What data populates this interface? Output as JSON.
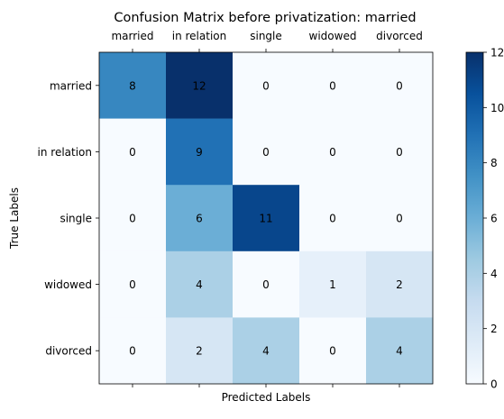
{
  "chart_data": {
    "type": "heatmap",
    "title": "Confusion Matrix before privatization: married",
    "xlabel": "Predicted Labels",
    "ylabel": "True Labels",
    "x_tick_position": "top",
    "x_categories": [
      "married",
      "in relation",
      "single",
      "widowed",
      "divorced"
    ],
    "y_categories": [
      "married",
      "in relation",
      "single",
      "widowed",
      "divorced"
    ],
    "values": [
      [
        8,
        12,
        0,
        0,
        0
      ],
      [
        0,
        9,
        0,
        0,
        0
      ],
      [
        0,
        6,
        11,
        0,
        0
      ],
      [
        0,
        4,
        0,
        1,
        2
      ],
      [
        0,
        2,
        4,
        0,
        4
      ]
    ],
    "colormap": "Blues",
    "colorbar": {
      "range": [
        0,
        12
      ],
      "ticks": [
        0,
        2,
        4,
        6,
        8,
        10,
        12
      ]
    },
    "grid": false
  }
}
